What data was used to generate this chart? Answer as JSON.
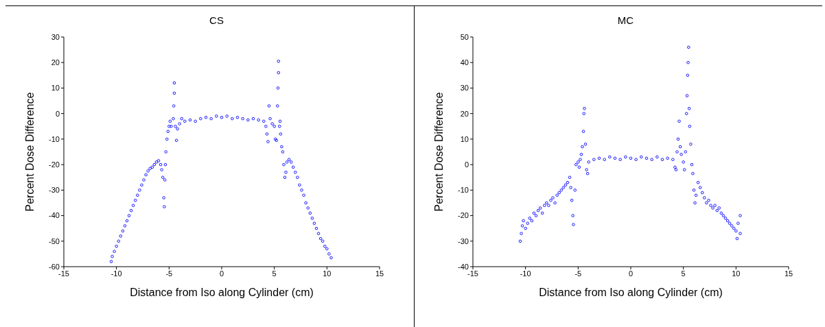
{
  "chart_data": [
    {
      "type": "scatter",
      "title": "CS",
      "xlabel": "Distance from Iso along Cylinder (cm)",
      "ylabel": "Percent Dose Difference",
      "xlim": [
        -15,
        15
      ],
      "xticks": [
        -15,
        -10,
        -5,
        0,
        5,
        10,
        15
      ],
      "ylim": [
        -60,
        30
      ],
      "yticks": [
        -60,
        -50,
        -40,
        -30,
        -20,
        -10,
        0,
        10,
        20,
        30
      ],
      "marker": "circle",
      "series": [
        {
          "color": "#0000ff",
          "x": [
            -10.5,
            -10.4,
            -10.2,
            -10,
            -9.8,
            -9.6,
            -9.4,
            -9.2,
            -9,
            -8.8,
            -8.6,
            -8.4,
            -8.2,
            -8,
            -7.8,
            -7.6,
            -7.4,
            -7.2,
            -7,
            -6.8,
            -6.6,
            -6.4,
            -6.2,
            -6,
            -5.8,
            -5.7,
            -5.6,
            -5.5,
            -5.45,
            -5.4,
            -5.35,
            -5.3,
            -5.2,
            -5.1,
            -5,
            -4.9,
            -4.8,
            -4.6,
            -4.55,
            -4.5,
            -4.5,
            -4.4,
            -4.3,
            -4.2,
            -4,
            -3.8,
            -3.5,
            -3,
            -2.5,
            -2,
            -1.5,
            -1,
            -0.5,
            0,
            0.5,
            1,
            1.5,
            2,
            2.5,
            3,
            3.5,
            4,
            4.2,
            4.3,
            4.4,
            4.5,
            4.6,
            4.8,
            5,
            5.1,
            5.2,
            5.3,
            5.35,
            5.4,
            5.4,
            5.5,
            5.55,
            5.6,
            5.7,
            5.8,
            5.9,
            6,
            6.1,
            6.2,
            6.4,
            6.6,
            6.8,
            7,
            7.2,
            7.4,
            7.6,
            7.8,
            8,
            8.2,
            8.4,
            8.6,
            8.8,
            9,
            9.2,
            9.4,
            9.6,
            9.8,
            10,
            10.2,
            10.4
          ],
          "values": [
            -58,
            -56,
            -54,
            -52,
            -50,
            -48,
            -46,
            -44,
            -42,
            -40,
            -38,
            -36,
            -34,
            -32,
            -30,
            -28,
            -26,
            -24,
            -22.5,
            -21.5,
            -21,
            -20,
            -19,
            -18.5,
            -20,
            -22,
            -25,
            -33,
            -36.5,
            -26,
            -20,
            -15,
            -10,
            -7,
            -5,
            -3,
            -5,
            -2,
            3,
            8,
            12,
            -5,
            -10.5,
            -6,
            -4,
            -2,
            -3,
            -2.5,
            -3,
            -2,
            -1.5,
            -2,
            -1,
            -1.5,
            -1,
            -2,
            -1.5,
            -2,
            -2.5,
            -2,
            -2.5,
            -3,
            -5,
            -8,
            -11,
            3,
            -2,
            -4,
            -5,
            -10,
            -10.5,
            3,
            10,
            16,
            20.5,
            -5,
            -3,
            -8,
            -13,
            -15,
            -20,
            -25,
            -23,
            -19,
            -18,
            -19,
            -21,
            -23,
            -25,
            -28,
            -30,
            -32,
            -35,
            -37,
            -39,
            -41,
            -43,
            -45,
            -47,
            -49,
            -50,
            -52,
            -53,
            -55,
            -56.5
          ]
        }
      ]
    },
    {
      "type": "scatter",
      "title": "MC",
      "xlabel": "Distance from Iso along Cylinder (cm)",
      "ylabel": "Percent Dose Difference",
      "xlim": [
        -15,
        15
      ],
      "xticks": [
        -15,
        -10,
        -5,
        0,
        5,
        10,
        15
      ],
      "ylim": [
        -40,
        50
      ],
      "yticks": [
        -40,
        -30,
        -20,
        -10,
        0,
        10,
        20,
        30,
        40,
        50
      ],
      "marker": "circle",
      "series": [
        {
          "color": "#0000ff",
          "x": [
            -10.5,
            -10.4,
            -10.3,
            -10.2,
            -10,
            -9.8,
            -9.6,
            -9.4,
            -9.2,
            -9,
            -8.8,
            -8.6,
            -8.4,
            -8.2,
            -8,
            -7.8,
            -7.6,
            -7.4,
            -7.2,
            -7,
            -6.8,
            -6.6,
            -6.4,
            -6.2,
            -6,
            -5.8,
            -5.7,
            -5.6,
            -5.5,
            -5.45,
            -5.3,
            -5.2,
            -5,
            -4.9,
            -4.8,
            -4.7,
            -4.6,
            -4.5,
            -4.45,
            -4.4,
            -4.3,
            -4.2,
            -4.1,
            -4,
            -3.5,
            -3,
            -2.5,
            -2,
            -1.5,
            -1,
            -0.5,
            0,
            0.5,
            1,
            1.5,
            2,
            2.5,
            3,
            3.5,
            4,
            4.2,
            4.3,
            4.4,
            4.5,
            4.6,
            4.7,
            4.8,
            5,
            5.1,
            5.2,
            5.3,
            5.35,
            5.4,
            5.45,
            5.5,
            5.55,
            5.6,
            5.7,
            5.8,
            5.9,
            6,
            6.1,
            6.2,
            6.4,
            6.6,
            6.8,
            7,
            7.2,
            7.4,
            7.6,
            7.8,
            8,
            8.2,
            8.4,
            8.6,
            8.8,
            9,
            9.2,
            9.4,
            9.6,
            9.8,
            10,
            10.1,
            10.2,
            10.4,
            10.4
          ],
          "values": [
            -30,
            -27,
            -24,
            -22,
            -25,
            -23,
            -21,
            -22,
            -19,
            -20,
            -18,
            -17,
            -19,
            -16,
            -15,
            -16,
            -14,
            -13,
            -15,
            -12,
            -11,
            -10,
            -9,
            -8,
            -7,
            -5,
            -9,
            -14,
            -20,
            -23.5,
            -10,
            0,
            1,
            -1,
            2,
            4,
            7,
            13,
            20,
            22,
            8,
            -2,
            -3.5,
            1,
            2,
            2.5,
            2,
            3,
            2.5,
            2,
            3,
            2.5,
            2,
            3,
            2.5,
            2,
            3,
            2,
            2.5,
            2,
            -1,
            -2,
            5,
            10,
            17,
            7,
            4,
            1,
            -2,
            5,
            20,
            27,
            35,
            40,
            46,
            22,
            15,
            8,
            0,
            -3.5,
            -10,
            -15,
            -12,
            -7,
            -9,
            -11,
            -13,
            -15,
            -14,
            -16,
            -17,
            -16,
            -18,
            -17,
            -19,
            -20,
            -21,
            -22,
            -23,
            -24,
            -25,
            -26,
            -29,
            -23,
            -20,
            -27
          ]
        }
      ]
    }
  ]
}
